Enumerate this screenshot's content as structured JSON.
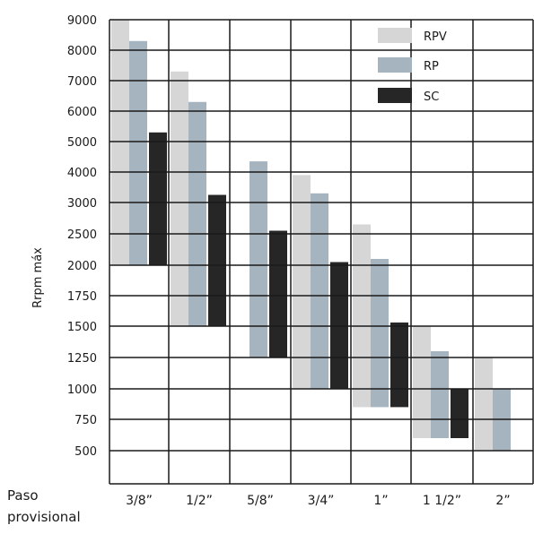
{
  "chart_data": {
    "type": "bar",
    "subtype": "floating-range",
    "ylabel": "Rrpm máx",
    "xlabel": [
      "Paso",
      "provisional"
    ],
    "y_ticks": [
      "9000",
      "8000",
      "7000",
      "6000",
      "5000",
      "4000",
      "3000",
      "2500",
      "2000",
      "1750",
      "1500",
      "1250",
      "1000",
      "750",
      "500"
    ],
    "categories": [
      "3/8”",
      "1/2”",
      "5/8”",
      "3/4”",
      "1”",
      "1 1/2”",
      "2”"
    ],
    "series": [
      {
        "name": "RPV",
        "color": "#d6d6d6",
        "ranges": [
          [
            2000,
            9000
          ],
          [
            1500,
            7300
          ],
          null,
          [
            1000,
            3900
          ],
          [
            850,
            2650
          ],
          [
            600,
            1500
          ],
          [
            500,
            1250
          ]
        ]
      },
      {
        "name": "RP",
        "color": "#a6b4bf",
        "ranges": [
          [
            2000,
            8300
          ],
          [
            1500,
            6300
          ],
          [
            1250,
            4350
          ],
          [
            1000,
            3300
          ],
          [
            850,
            2100
          ],
          [
            600,
            1300
          ],
          [
            500,
            1000
          ]
        ]
      },
      {
        "name": "SC",
        "color": "#262626",
        "ranges": [
          [
            2000,
            5300
          ],
          [
            1500,
            3250
          ],
          [
            1250,
            2550
          ],
          null,
          [
            850,
            1530
          ],
          [
            600,
            1000
          ],
          null
        ]
      }
    ],
    "extra_bars": [
      {
        "category": "3/4”",
        "series": "SC",
        "range": [
          1000,
          2050
        ]
      }
    ],
    "legend": {
      "position": "top-right",
      "items": [
        "RPV",
        "RP",
        "SC"
      ]
    },
    "grid": true
  }
}
